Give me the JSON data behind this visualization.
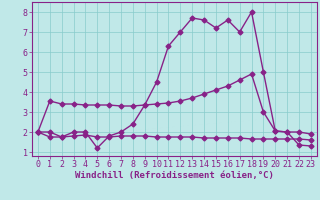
{
  "bg_color": "#c0e8e8",
  "grid_color": "#88cccc",
  "line_color": "#882288",
  "marker": "D",
  "markersize": 2.5,
  "linewidth": 1.0,
  "xlabel": "Windchill (Refroidissement éolien,°C)",
  "xlabel_fontsize": 6.5,
  "tick_fontsize": 6,
  "ylim": [
    0.8,
    8.5
  ],
  "xlim": [
    -0.5,
    23.5
  ],
  "yticks": [
    1,
    2,
    3,
    4,
    5,
    6,
    7,
    8
  ],
  "xticks": [
    0,
    1,
    2,
    3,
    4,
    5,
    6,
    7,
    8,
    9,
    10,
    11,
    12,
    13,
    14,
    15,
    16,
    17,
    18,
    19,
    20,
    21,
    22,
    23
  ],
  "series": [
    {
      "x": [
        0,
        1,
        2,
        3,
        4,
        5,
        6,
        7,
        8,
        9,
        10,
        11,
        12,
        13,
        14,
        15,
        16,
        17,
        18,
        19,
        20,
        21,
        22,
        23
      ],
      "y": [
        2.0,
        3.55,
        3.4,
        3.4,
        3.35,
        3.35,
        3.35,
        3.3,
        3.3,
        3.35,
        3.4,
        3.45,
        3.55,
        3.7,
        3.9,
        4.1,
        4.3,
        4.6,
        4.9,
        3.0,
        2.05,
        2.0,
        2.0,
        1.9
      ]
    },
    {
      "x": [
        0,
        1,
        2,
        3,
        4,
        5,
        6,
        7,
        8,
        9,
        10,
        11,
        12,
        13,
        14,
        15,
        16,
        17,
        18,
        19,
        20,
        21,
        22,
        23
      ],
      "y": [
        2.0,
        2.0,
        1.75,
        2.0,
        2.0,
        1.2,
        1.8,
        2.0,
        2.4,
        3.35,
        4.5,
        6.3,
        7.0,
        7.7,
        7.6,
        7.2,
        7.6,
        7.0,
        8.0,
        5.0,
        2.05,
        2.0,
        1.35,
        1.3
      ]
    },
    {
      "x": [
        0,
        1,
        2,
        3,
        4,
        5,
        6,
        7,
        8,
        9,
        10,
        11,
        12,
        13,
        14,
        15,
        16,
        17,
        18,
        19,
        20,
        21,
        22,
        23
      ],
      "y": [
        2.0,
        1.75,
        1.75,
        1.8,
        1.85,
        1.75,
        1.75,
        1.8,
        1.8,
        1.8,
        1.75,
        1.75,
        1.75,
        1.75,
        1.7,
        1.7,
        1.7,
        1.7,
        1.65,
        1.65,
        1.65,
        1.65,
        1.65,
        1.6
      ]
    }
  ]
}
